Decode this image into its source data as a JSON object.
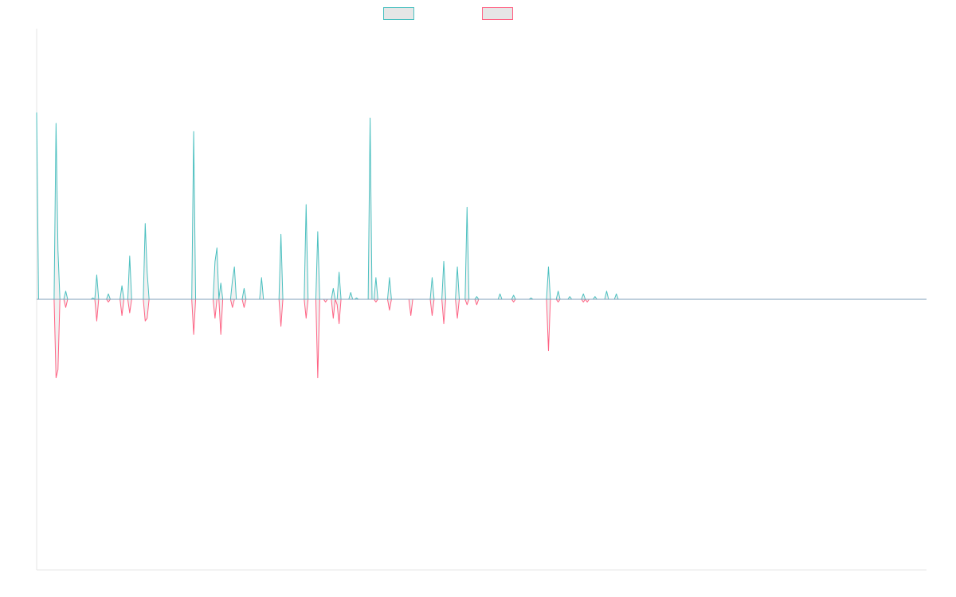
{
  "chart_data": {
    "type": "area",
    "title": "",
    "xlabel": "",
    "ylabel": "",
    "ylim": [
      -100,
      100
    ],
    "grid": false,
    "legend": {
      "placement": "top-center"
    },
    "n_points": 460,
    "series": [
      {
        "name": "",
        "color": "#4bc0c0",
        "fill": "#e6e6e6",
        "sparse_values": [
          [
            0,
            69
          ],
          [
            10,
            65
          ],
          [
            11,
            18
          ],
          [
            15,
            3
          ],
          [
            29,
            0.5
          ],
          [
            31,
            9
          ],
          [
            37,
            2
          ],
          [
            44,
            5
          ],
          [
            48,
            16
          ],
          [
            56,
            28
          ],
          [
            57,
            10
          ],
          [
            81,
            62
          ],
          [
            92,
            14
          ],
          [
            93,
            19
          ],
          [
            95,
            6
          ],
          [
            101,
            7
          ],
          [
            102,
            12
          ],
          [
            107,
            4
          ],
          [
            116,
            8
          ],
          [
            126,
            24
          ],
          [
            139,
            35
          ],
          [
            145,
            25
          ],
          [
            153,
            4
          ],
          [
            156,
            10
          ],
          [
            162,
            2.5
          ],
          [
            165,
            0.5
          ],
          [
            172,
            67
          ],
          [
            175,
            8
          ],
          [
            182,
            8
          ],
          [
            204,
            8
          ],
          [
            210,
            14
          ],
          [
            217,
            12
          ],
          [
            222,
            34
          ],
          [
            227,
            1
          ],
          [
            239,
            2
          ],
          [
            246,
            1.5
          ],
          [
            255,
            0.5
          ],
          [
            264,
            12
          ],
          [
            269,
            3
          ],
          [
            275,
            1
          ],
          [
            282,
            2
          ],
          [
            288,
            1
          ],
          [
            294,
            3
          ],
          [
            299,
            2
          ]
        ]
      },
      {
        "name": "",
        "color": "#ff6384",
        "fill": "#e6e6e6",
        "sparse_values": [
          [
            10,
            -29
          ],
          [
            11,
            -26
          ],
          [
            15,
            -3
          ],
          [
            31,
            -8
          ],
          [
            37,
            -1
          ],
          [
            44,
            -6
          ],
          [
            48,
            -5
          ],
          [
            56,
            -8
          ],
          [
            57,
            -7
          ],
          [
            81,
            -13
          ],
          [
            92,
            -7
          ],
          [
            95,
            -13
          ],
          [
            101,
            -3
          ],
          [
            107,
            -3
          ],
          [
            126,
            -10
          ],
          [
            139,
            -7
          ],
          [
            145,
            -29
          ],
          [
            149,
            -1
          ],
          [
            153,
            -7
          ],
          [
            155,
            -2
          ],
          [
            156,
            -9
          ],
          [
            175,
            -1
          ],
          [
            182,
            -4
          ],
          [
            193,
            -6
          ],
          [
            204,
            -6
          ],
          [
            210,
            -9
          ],
          [
            217,
            -7
          ],
          [
            222,
            -2
          ],
          [
            227,
            -2
          ],
          [
            246,
            -1
          ],
          [
            264,
            -19
          ],
          [
            269,
            -1
          ],
          [
            282,
            -1
          ],
          [
            284,
            -1
          ]
        ]
      }
    ]
  }
}
